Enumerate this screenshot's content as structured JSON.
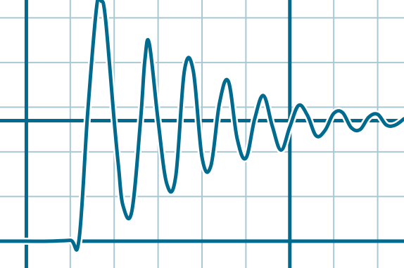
{
  "chart_data": {
    "type": "line",
    "title": "",
    "xlabel": "",
    "ylabel": "",
    "grid": true,
    "legend": "none",
    "xlim": [
      -0.6,
      8.6
    ],
    "ylim": [
      -0.3,
      2.7
    ],
    "step_time": 1.2,
    "initial_value": 0.0,
    "final_value": 1.35,
    "peak_value": 2.69,
    "damping_ratio": 0.085,
    "oscillation_period": 0.98,
    "series": [
      {
        "x": [
          -0.6,
          0.0,
          0.5,
          1.0,
          1.2,
          1.4,
          1.6,
          1.7,
          1.8,
          2.0,
          2.1,
          2.2,
          2.4,
          2.6,
          2.7,
          2.8,
          3.0,
          3.2,
          3.4,
          3.6,
          3.8,
          4.0,
          4.2,
          4.4,
          4.6,
          4.8,
          5.0,
          5.2,
          5.4,
          5.6,
          5.8,
          6.0,
          6.2,
          6.4,
          6.6,
          6.8,
          7.0,
          7.2,
          7.4,
          7.6,
          7.8,
          8.0,
          8.2,
          8.4,
          8.6
        ],
        "y": [
          0.0,
          0.0,
          0.0,
          0.01,
          0.02,
          1.46,
          2.62,
          2.69,
          2.5,
          1.35,
          0.83,
          0.4,
          0.33,
          1.35,
          2.03,
          2.21,
          1.35,
          0.64,
          0.72,
          1.91,
          1.91,
          0.94,
          0.84,
          1.55,
          1.79,
          1.15,
          0.93,
          1.37,
          1.63,
          1.29,
          1.02,
          1.28,
          1.52,
          1.41,
          1.18,
          1.24,
          1.43,
          1.44,
          1.27,
          1.25,
          1.39,
          1.42,
          1.3,
          1.3,
          1.37
        ]
      }
    ],
    "colors": {
      "line": "#006b8f",
      "grid_minor": "#a8c8d4",
      "axis_major": "#006b8f",
      "outline": "#ffffff",
      "background": "#ffffff"
    }
  }
}
